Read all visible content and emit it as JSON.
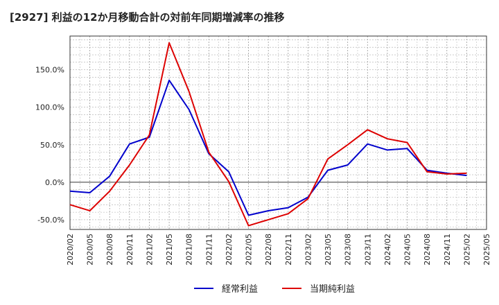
{
  "chart_data": {
    "type": "line",
    "title": "[2927]  利益の12か月移動合計の対前年同期増減率の推移",
    "xlabel": "",
    "ylabel": "",
    "categories": [
      "2020/02",
      "2020/05",
      "2020/08",
      "2020/11",
      "2021/02",
      "2021/05",
      "2021/08",
      "2021/11",
      "2022/02",
      "2022/05",
      "2022/08",
      "2022/11",
      "2023/02",
      "2023/05",
      "2023/08",
      "2023/11",
      "2024/02",
      "2024/05",
      "2024/08",
      "2024/11",
      "2025/02",
      "2025/05"
    ],
    "ylim": [
      -63,
      195
    ],
    "yticks": [
      -50,
      0,
      50,
      100,
      150
    ],
    "ytick_labels": [
      "-50.0%",
      "0.0%",
      "50.0%",
      "100.0%",
      "150.0%"
    ],
    "grid": true,
    "legend_position": "bottom-center",
    "series": [
      {
        "name": "経常利益",
        "color": "#0000cc",
        "values": [
          -12,
          -14,
          8,
          51,
          60,
          136,
          97,
          38,
          14,
          -44,
          -38,
          -34,
          -20,
          16,
          23,
          51,
          43,
          45,
          16,
          12,
          9,
          null
        ]
      },
      {
        "name": "当期純利益",
        "color": "#dd0000",
        "values": [
          -30,
          -38,
          -12,
          23,
          63,
          186,
          121,
          40,
          1,
          -58,
          -50,
          -42,
          -22,
          31,
          50,
          70,
          58,
          53,
          14,
          11,
          12,
          null
        ]
      }
    ]
  }
}
